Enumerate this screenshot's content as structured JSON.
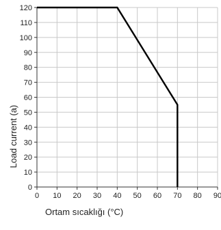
{
  "chart_data": {
    "type": "line",
    "title": "",
    "xlabel": "Ortam sıcaklığı (°C)",
    "ylabel": "Load current (a)",
    "xlim": [
      0,
      90
    ],
    "ylim": [
      0,
      120
    ],
    "xticks": [
      0,
      10,
      20,
      30,
      40,
      50,
      60,
      70,
      80,
      90
    ],
    "yticks": [
      0,
      10,
      20,
      30,
      40,
      50,
      60,
      70,
      80,
      90,
      100,
      110,
      120
    ],
    "grid": true,
    "series": [
      {
        "x": [
          0,
          40,
          70,
          70
        ],
        "y": [
          120,
          120,
          55,
          0
        ],
        "color": "#000000"
      }
    ]
  }
}
